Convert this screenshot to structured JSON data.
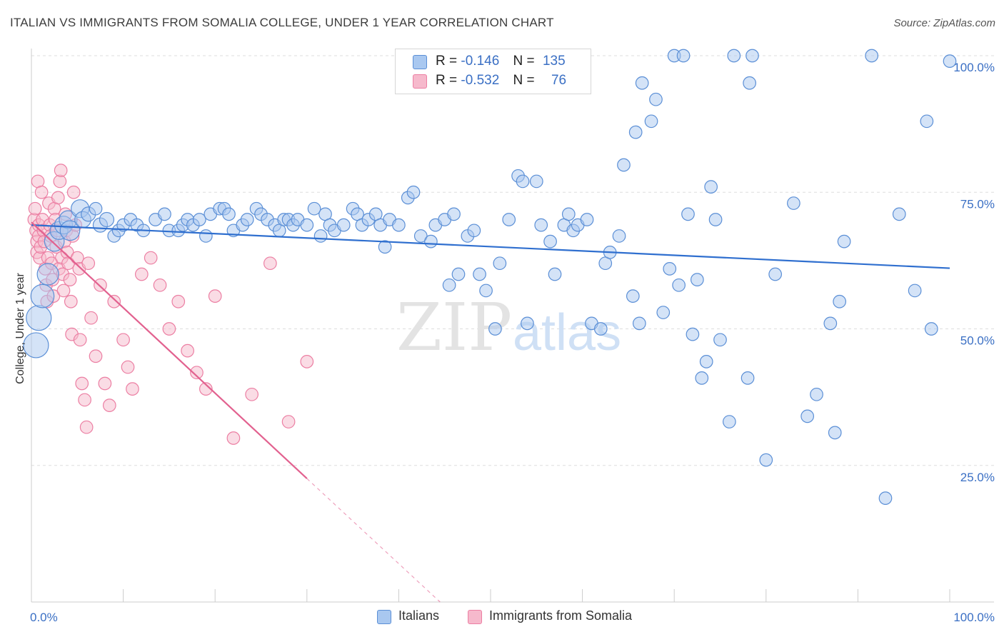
{
  "title": "ITALIAN VS IMMIGRANTS FROM SOMALIA COLLEGE, UNDER 1 YEAR CORRELATION CHART",
  "source": "Source: ZipAtlas.com",
  "watermark": {
    "zip": "ZIP",
    "atlas": "atlas"
  },
  "legend": {
    "italians": {
      "r_label": "R =",
      "r_value": "-0.146",
      "n_label": "N =",
      "n_value": "135"
    },
    "somalia": {
      "r_label": "R =",
      "r_value": "-0.532",
      "n_label": "N =",
      "n_value": "76"
    }
  },
  "bottom_legend": {
    "italians": "Italians",
    "somalia": "Immigrants from Somalia"
  },
  "colors": {
    "italians_fill": "#a9c8f0",
    "italians_stroke": "#5b8fd6",
    "italians_line": "#2f6fcf",
    "somalia_fill": "#f6b9cc",
    "somalia_stroke": "#ec7fa3",
    "somalia_line": "#e2618f",
    "tick": "#3a6fc4",
    "grid": "#dddddd"
  },
  "chart_data": {
    "type": "scatter",
    "title": "ITALIAN VS IMMIGRANTS FROM SOMALIA COLLEGE, UNDER 1 YEAR CORRELATION CHART",
    "xlabel": "",
    "ylabel": "College, Under 1 year",
    "x_tick_labels": [
      "0.0%",
      "100.0%"
    ],
    "y_tick_labels": [
      "100.0%",
      "75.0%",
      "50.0%",
      "25.0%"
    ],
    "xlim": [
      0,
      100
    ],
    "ylim": [
      0,
      100
    ],
    "grid": true,
    "series": [
      {
        "name": "Italians",
        "r": -0.146,
        "n": 135,
        "trend": {
          "x": [
            0,
            100
          ],
          "y": [
            69.0,
            61.1
          ]
        },
        "points": [
          [
            0.5,
            47,
            14
          ],
          [
            0.8,
            52,
            14
          ],
          [
            1.2,
            56,
            13
          ],
          [
            1.8,
            60,
            12
          ],
          [
            2.5,
            66,
            11
          ],
          [
            3,
            68,
            10
          ],
          [
            3.5,
            69,
            10
          ],
          [
            4,
            70,
            10
          ],
          [
            4.2,
            68,
            11
          ],
          [
            5.3,
            72,
            10
          ],
          [
            5.6,
            70,
            9
          ],
          [
            6.2,
            71,
            8
          ],
          [
            7,
            72,
            7
          ],
          [
            7.5,
            69,
            8
          ],
          [
            8.2,
            70,
            8
          ],
          [
            9,
            67,
            7
          ],
          [
            9.5,
            68,
            7
          ],
          [
            10,
            69,
            7
          ],
          [
            10.8,
            70,
            7
          ],
          [
            11.5,
            69,
            7
          ],
          [
            12.2,
            68,
            7
          ],
          [
            13.5,
            70,
            7
          ],
          [
            14.5,
            71,
            7
          ],
          [
            15,
            68,
            7
          ],
          [
            16,
            68,
            7
          ],
          [
            16.5,
            69,
            7
          ],
          [
            17,
            70,
            7
          ],
          [
            17.6,
            69,
            7
          ],
          [
            18.3,
            70,
            7
          ],
          [
            19,
            67,
            7
          ],
          [
            19.5,
            71,
            7
          ],
          [
            20.5,
            72,
            7
          ],
          [
            21,
            72,
            7
          ],
          [
            21.5,
            71,
            7
          ],
          [
            22,
            68,
            7
          ],
          [
            23,
            69,
            7
          ],
          [
            23.5,
            70,
            7
          ],
          [
            24.5,
            72,
            7
          ],
          [
            25,
            71,
            7
          ],
          [
            25.7,
            70,
            7
          ],
          [
            26.5,
            69,
            7
          ],
          [
            27,
            68,
            7
          ],
          [
            27.5,
            70,
            7
          ],
          [
            28,
            70,
            7
          ],
          [
            28.5,
            69,
            7
          ],
          [
            29,
            70,
            7
          ],
          [
            30,
            69,
            7
          ],
          [
            30.8,
            72,
            7
          ],
          [
            31.5,
            67,
            7
          ],
          [
            32,
            71,
            7
          ],
          [
            32.5,
            69,
            7
          ],
          [
            33,
            68,
            7
          ],
          [
            34,
            69,
            7
          ],
          [
            35,
            72,
            7
          ],
          [
            35.5,
            71,
            7
          ],
          [
            36,
            69,
            7
          ],
          [
            36.7,
            70,
            7
          ],
          [
            37.5,
            71,
            7
          ],
          [
            38,
            69,
            7
          ],
          [
            38.5,
            65,
            7
          ],
          [
            39,
            70,
            7
          ],
          [
            40,
            69,
            7
          ],
          [
            41,
            74,
            7
          ],
          [
            41.6,
            75,
            7
          ],
          [
            42.4,
            67,
            7
          ],
          [
            43.5,
            66,
            7
          ],
          [
            44,
            69,
            7
          ],
          [
            45,
            70,
            7
          ],
          [
            45.5,
            58,
            7
          ],
          [
            46,
            71,
            7
          ],
          [
            46.5,
            60,
            7
          ],
          [
            47.5,
            67,
            7
          ],
          [
            48.2,
            68,
            7
          ],
          [
            48.8,
            60,
            7
          ],
          [
            49.5,
            57,
            7
          ],
          [
            50.5,
            50,
            7
          ],
          [
            51,
            62,
            7
          ],
          [
            52,
            70,
            7
          ],
          [
            53,
            78,
            7
          ],
          [
            53.5,
            77,
            7
          ],
          [
            54,
            51,
            7
          ],
          [
            55,
            77,
            7
          ],
          [
            55.5,
            69,
            7
          ],
          [
            56.5,
            66,
            7
          ],
          [
            57,
            60,
            7
          ],
          [
            58,
            69,
            7
          ],
          [
            58.5,
            71,
            7
          ],
          [
            59,
            68,
            7
          ],
          [
            59.5,
            69,
            7
          ],
          [
            60.5,
            70,
            7
          ],
          [
            61,
            51,
            7
          ],
          [
            62,
            50,
            7
          ],
          [
            62.5,
            62,
            7
          ],
          [
            63,
            64,
            7
          ],
          [
            64,
            67,
            7
          ],
          [
            64.5,
            80,
            7
          ],
          [
            65.5,
            56,
            7
          ],
          [
            65.8,
            86,
            7
          ],
          [
            66.2,
            51,
            7
          ],
          [
            66.5,
            95,
            7
          ],
          [
            67.5,
            88,
            7
          ],
          [
            68,
            92,
            7
          ],
          [
            68.8,
            53,
            7
          ],
          [
            69.5,
            61,
            7
          ],
          [
            70,
            100,
            7
          ],
          [
            70.5,
            58,
            7
          ],
          [
            71,
            100,
            7
          ],
          [
            71.5,
            71,
            7
          ],
          [
            72,
            49,
            7
          ],
          [
            72.5,
            59,
            7
          ],
          [
            73,
            41,
            7
          ],
          [
            73.5,
            44,
            7
          ],
          [
            74,
            76,
            7
          ],
          [
            74.5,
            70,
            7
          ],
          [
            75,
            48,
            7
          ],
          [
            76,
            33,
            7
          ],
          [
            76.5,
            100,
            7
          ],
          [
            78,
            41,
            7
          ],
          [
            78.2,
            95,
            7
          ],
          [
            78.5,
            100,
            7
          ],
          [
            80,
            26,
            7
          ],
          [
            81,
            60,
            7
          ],
          [
            83,
            73,
            7
          ],
          [
            84.5,
            34,
            7
          ],
          [
            85.5,
            38,
            7
          ],
          [
            87,
            51,
            7
          ],
          [
            87.5,
            31,
            7
          ],
          [
            88,
            55,
            7
          ],
          [
            88.5,
            66,
            7
          ],
          [
            91.5,
            100,
            7
          ],
          [
            93,
            19,
            7
          ],
          [
            94.5,
            71,
            7
          ],
          [
            96.2,
            57,
            7
          ],
          [
            97.5,
            88,
            7
          ],
          [
            98,
            50,
            7
          ],
          [
            100,
            99,
            7
          ]
        ]
      },
      {
        "name": "Immigrants from Somalia",
        "r": -0.532,
        "n": 76,
        "trend_solid": {
          "x": [
            0,
            30
          ],
          "y": [
            69.5,
            22.6
          ]
        },
        "trend_dashed": {
          "x": [
            30,
            44.5
          ],
          "y": [
            22.6,
            0
          ]
        },
        "points": [
          [
            0.3,
            70,
            7
          ],
          [
            0.4,
            72,
            7
          ],
          [
            0.5,
            68,
            7
          ],
          [
            0.6,
            66,
            7
          ],
          [
            0.6,
            64,
            7
          ],
          [
            0.7,
            77,
            7
          ],
          [
            0.8,
            67,
            7
          ],
          [
            0.8,
            69,
            7
          ],
          [
            0.9,
            63,
            7
          ],
          [
            1.0,
            65,
            7
          ],
          [
            1.1,
            75,
            7
          ],
          [
            1.2,
            70,
            7
          ],
          [
            1.3,
            68,
            7
          ],
          [
            1.4,
            66,
            7
          ],
          [
            1.5,
            61,
            7
          ],
          [
            1.6,
            58,
            7
          ],
          [
            1.7,
            55,
            7
          ],
          [
            1.8,
            63,
            7
          ],
          [
            1.9,
            73,
            7
          ],
          [
            2.0,
            69,
            7
          ],
          [
            2.1,
            67,
            7
          ],
          [
            2.2,
            62,
            7
          ],
          [
            2.3,
            59,
            7
          ],
          [
            2.4,
            56,
            7
          ],
          [
            2.5,
            72,
            7
          ],
          [
            2.6,
            70,
            7
          ],
          [
            2.7,
            65,
            7
          ],
          [
            2.8,
            68,
            7
          ],
          [
            2.9,
            74,
            7
          ],
          [
            3.0,
            61,
            7
          ],
          [
            3.1,
            77,
            7
          ],
          [
            3.2,
            79,
            7
          ],
          [
            3.3,
            63,
            7
          ],
          [
            3.4,
            60,
            7
          ],
          [
            3.5,
            57,
            7
          ],
          [
            3.6,
            66,
            7
          ],
          [
            3.7,
            71,
            7
          ],
          [
            3.8,
            68,
            7
          ],
          [
            3.9,
            64,
            7
          ],
          [
            4.0,
            62,
            7
          ],
          [
            4.2,
            59,
            7
          ],
          [
            4.3,
            55,
            7
          ],
          [
            4.4,
            49,
            7
          ],
          [
            4.5,
            67,
            7
          ],
          [
            4.6,
            75,
            7
          ],
          [
            4.8,
            69,
            7
          ],
          [
            5.0,
            63,
            7
          ],
          [
            5.2,
            61,
            7
          ],
          [
            5.3,
            48,
            7
          ],
          [
            5.5,
            40,
            7
          ],
          [
            5.8,
            37,
            7
          ],
          [
            6.0,
            32,
            7
          ],
          [
            6.2,
            62,
            7
          ],
          [
            6.5,
            52,
            7
          ],
          [
            7,
            45,
            7
          ],
          [
            7.5,
            58,
            7
          ],
          [
            8,
            40,
            7
          ],
          [
            8.5,
            36,
            7
          ],
          [
            9,
            55,
            7
          ],
          [
            10,
            48,
            7
          ],
          [
            10.5,
            43,
            7
          ],
          [
            11,
            39,
            7
          ],
          [
            12,
            60,
            7
          ],
          [
            13,
            63,
            7
          ],
          [
            14,
            58,
            7
          ],
          [
            15,
            50,
            7
          ],
          [
            16,
            55,
            7
          ],
          [
            17,
            46,
            7
          ],
          [
            18,
            42,
            7
          ],
          [
            19,
            39,
            7
          ],
          [
            20,
            56,
            7
          ],
          [
            22,
            30,
            7
          ],
          [
            24,
            38,
            7
          ],
          [
            26,
            62,
            7
          ],
          [
            28,
            33,
            7
          ],
          [
            30,
            44,
            7
          ]
        ]
      }
    ]
  }
}
